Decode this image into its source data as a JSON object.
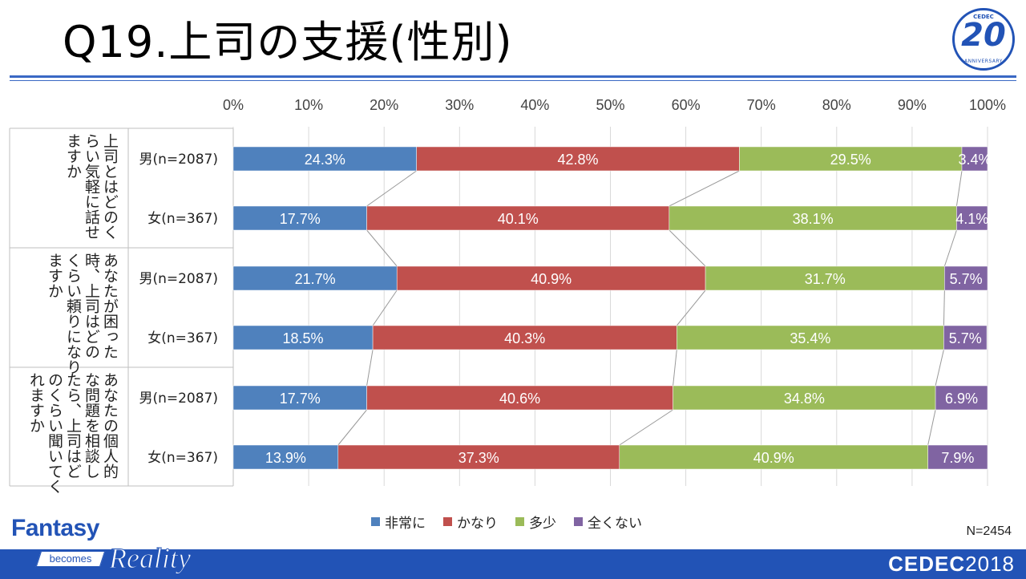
{
  "title": "Q19.上司の支援(性別)",
  "logo": {
    "top": "CEDEC",
    "number": "20",
    "bottom": "ANNIVERSARY"
  },
  "sample_size": "N=2454",
  "footer": {
    "fantasy": "Fantasy",
    "becomes": "becomes",
    "reality": "Reality",
    "brand": "CEDEC",
    "year": "2018"
  },
  "colors": {
    "非常に": "#4f81bd",
    "かなり": "#c0504d",
    "多少": "#9bbb59",
    "全くない": "#8064a2",
    "accent": "#2253b6"
  },
  "chart_data": {
    "type": "bar",
    "orientation": "horizontal",
    "stacked": "percent",
    "xlim": [
      0,
      100
    ],
    "xticks": [
      "0%",
      "10%",
      "20%",
      "30%",
      "40%",
      "50%",
      "60%",
      "70%",
      "80%",
      "90%",
      "100%"
    ],
    "legend_position": "bottom",
    "groups": [
      {
        "question": [
          "上司とはどのく",
          "らい気軽に話せ",
          "ますか"
        ]
      },
      {
        "question": [
          "あなたが困った",
          "時、上司はどの",
          "くらい頼りになり",
          "ますか"
        ]
      },
      {
        "question": [
          "あなたの個人的",
          "な問題を相談し",
          "たら、上司はど",
          "のくらい聞いてく",
          "れますか"
        ]
      }
    ],
    "categories": [
      "男(n=2087)",
      "女(n=367)",
      "男(n=2087)",
      "女(n=367)",
      "男(n=2087)",
      "女(n=367)"
    ],
    "series": [
      {
        "name": "非常に",
        "values": [
          24.3,
          17.7,
          21.7,
          18.5,
          17.7,
          13.9
        ],
        "labels": [
          "24.3%",
          "17.7%",
          "21.7%",
          "18.5%",
          "17.7%",
          "13.9%"
        ]
      },
      {
        "name": "かなり",
        "values": [
          42.8,
          40.1,
          40.9,
          40.3,
          40.6,
          37.3
        ],
        "labels": [
          "42.8%",
          "40.1%",
          "40.9%",
          "40.3%",
          "40.6%",
          "37.3%"
        ]
      },
      {
        "name": "多少",
        "values": [
          29.5,
          38.1,
          31.7,
          35.4,
          34.8,
          40.9
        ],
        "labels": [
          "29.5%",
          "38.1%",
          "31.7%",
          "35.4%",
          "34.8%",
          "40.9%"
        ]
      },
      {
        "name": "全くない",
        "values": [
          3.4,
          4.1,
          5.7,
          5.7,
          6.9,
          7.9
        ],
        "labels": [
          "3.4%",
          "4.1%",
          "5.7%",
          "5.7%",
          "6.9%",
          "7.9%"
        ]
      }
    ]
  }
}
